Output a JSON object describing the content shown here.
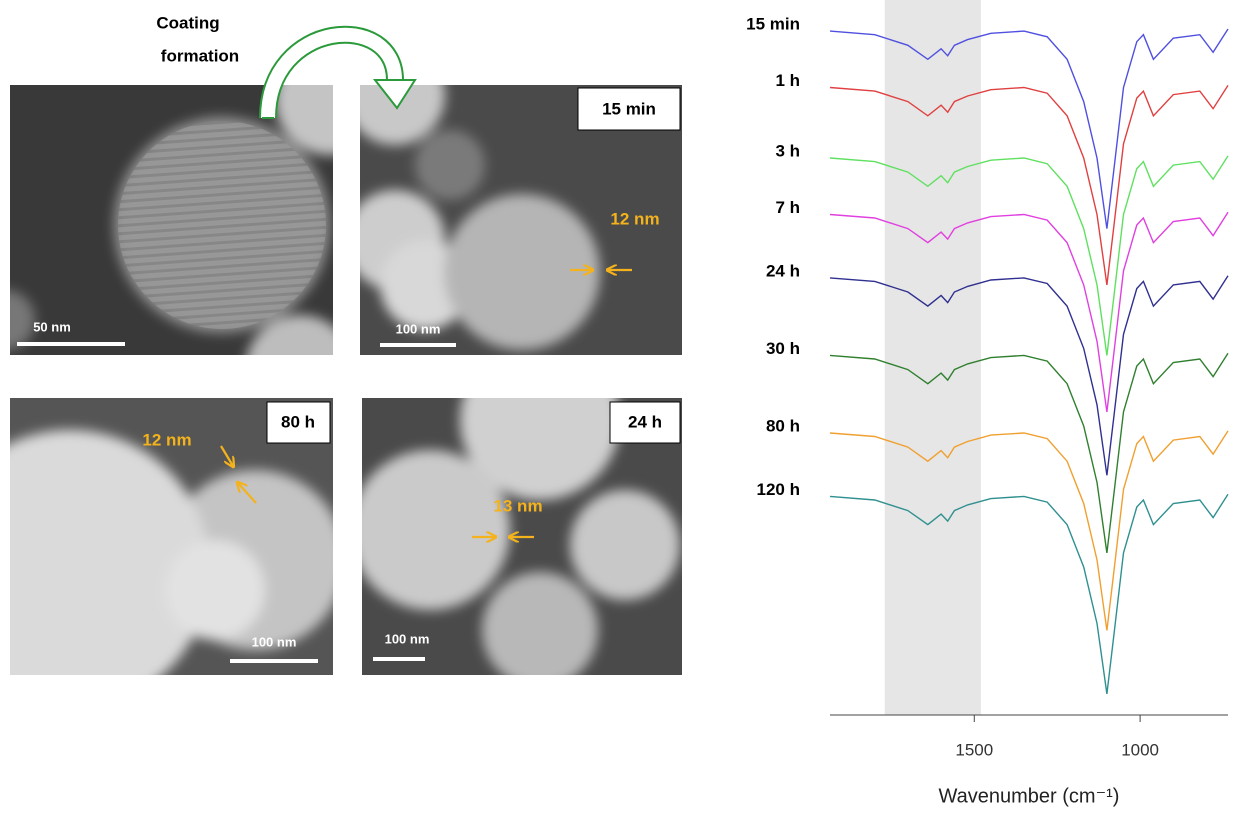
{
  "annotation": {
    "lines": [
      "Coating",
      "formation"
    ]
  },
  "panels": [
    {
      "scale_bar": "50 nm"
    },
    {
      "time": "15 min",
      "scale_bar": "100 nm",
      "thickness": "12 nm"
    },
    {
      "time": "80 h",
      "scale_bar": "100 nm",
      "thickness": "12 nm"
    },
    {
      "time": "24 h",
      "scale_bar": "100 nm",
      "thickness": "13 nm"
    }
  ],
  "chart_data": {
    "type": "line",
    "xlabel": "Wavenumber (cm⁻¹)",
    "xlim": [
      1935,
      735
    ],
    "xticks": [
      1500,
      1000
    ],
    "ylim": [
      0,
      100
    ],
    "highlight": [
      1770,
      1480
    ],
    "highlight_color": "#e6e6e6",
    "x": [
      1935,
      1800,
      1700,
      1640,
      1600,
      1580,
      1560,
      1520,
      1450,
      1350,
      1280,
      1220,
      1170,
      1130,
      1100,
      1080,
      1050,
      1010,
      990,
      960,
      900,
      820,
      780,
      735
    ],
    "series": [
      {
        "name": "15 min",
        "color": "#5050e0",
        "values": [
          97,
          96.5,
          95,
          93,
          94.5,
          93.5,
          95,
          95.8,
          96.7,
          97,
          96.2,
          93,
          87,
          79,
          69,
          77,
          89,
          95.5,
          96.5,
          93,
          96,
          96.5,
          94,
          97.3
        ]
      },
      {
        "name": "1 h",
        "color": "#e04040",
        "values": [
          89,
          88.5,
          87,
          85,
          86.5,
          85.5,
          87,
          87.8,
          88.7,
          89,
          88.2,
          85,
          79,
          71,
          61,
          69,
          81,
          87.5,
          88.5,
          85,
          88,
          88.5,
          86,
          89.3
        ]
      },
      {
        "name": "3 h",
        "color": "#60e060",
        "values": [
          79,
          78.5,
          77,
          75,
          76.5,
          75.5,
          77,
          77.8,
          78.7,
          79,
          78.2,
          75,
          69,
          61,
          51,
          59,
          71,
          77.5,
          78.5,
          75,
          78,
          78.5,
          76,
          79.3
        ]
      },
      {
        "name": "7 h",
        "color": "#e040e0",
        "values": [
          71,
          70.5,
          69,
          67,
          68.5,
          67.5,
          69,
          69.8,
          70.7,
          71,
          70.2,
          67,
          61,
          53,
          43,
          51,
          63,
          69.5,
          70.5,
          67,
          70,
          70.5,
          68,
          71.3
        ]
      },
      {
        "name": "24 h",
        "color": "#303090",
        "values": [
          62,
          61.5,
          60,
          58,
          59.5,
          58.5,
          60,
          60.8,
          61.7,
          62,
          61.2,
          58,
          52,
          44,
          34,
          42,
          54,
          60.5,
          61.5,
          58,
          61,
          61.5,
          59,
          62.3
        ]
      },
      {
        "name": "30 h",
        "color": "#308030",
        "values": [
          51,
          50.5,
          49,
          47,
          48.5,
          47.5,
          49,
          49.8,
          50.7,
          51,
          50.2,
          47,
          41,
          33,
          23,
          31,
          43,
          49.5,
          50.5,
          47,
          50,
          50.5,
          48,
          51.3
        ]
      },
      {
        "name": "80 h",
        "color": "#f0a030",
        "values": [
          40,
          39.5,
          38,
          36,
          37.5,
          36.5,
          38,
          38.8,
          39.7,
          40,
          39.2,
          36,
          30,
          22,
          12,
          20,
          32,
          38.5,
          39.5,
          36,
          39,
          39.5,
          37,
          40.3
        ]
      },
      {
        "name": "120 h",
        "color": "#309090",
        "values": [
          31,
          30.5,
          29,
          27,
          28.5,
          27.5,
          29,
          29.8,
          30.7,
          31,
          30.2,
          27,
          21,
          13,
          3,
          11,
          23,
          29.5,
          30.5,
          27,
          30,
          30.5,
          28,
          31.3
        ]
      }
    ]
  }
}
